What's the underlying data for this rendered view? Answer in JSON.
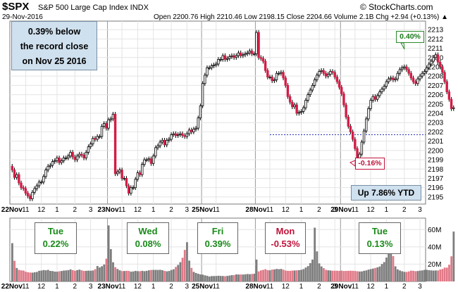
{
  "header": {
    "symbol": "$SPX",
    "name": "S&P 500 Large Cap Index  INDX",
    "brand": "© StockCharts.com",
    "date": "29-Nov-2016",
    "ohlc": "Open 2200.76  High 2210.46  Low 2198.15  Close 2204.66  Volume 2.1B  Chg +2.94 (+0.13%) ▲"
  },
  "annotations": {
    "record_note_line1": "0.39% below",
    "record_note_line2": "the record close",
    "record_note_line3": "on Nov 25 2016",
    "ytd": "Up 7.86% YTD",
    "high_callout": "0.40%",
    "low_callout": "-0.16%"
  },
  "day_boxes": [
    {
      "day": "Tue",
      "change": "0.22%",
      "direction": "up"
    },
    {
      "day": "Wed",
      "change": "0.08%",
      "direction": "up"
    },
    {
      "day": "Fri",
      "change": "0.39%",
      "direction": "up"
    },
    {
      "day": "Mon",
      "change": "-0.53%",
      "direction": "down"
    },
    {
      "day": "Tue",
      "change": "0.13%",
      "direction": "up"
    }
  ],
  "colors": {
    "up_candle": "#ffffff",
    "down_candle": "#d41c46",
    "volume_up": "#7d7d7d",
    "volume_down": "#e07a88",
    "record_line": "#1f2db5",
    "panel_border": "#7a7a7a",
    "grid": "#e4e4e4"
  },
  "chart_data": [
    {
      "type": "candlestick",
      "title": "$SPX S&P 500 Large Cap Index",
      "x_tick_labels": [
        "22Nov",
        "11",
        "12",
        "1",
        "2",
        "3",
        "23Nov",
        "11",
        "12",
        "1",
        "2",
        "3",
        "25Nov",
        "11",
        "28Nov",
        "11",
        "12",
        "1",
        "2",
        "3",
        "29Nov",
        "11",
        "12",
        "1",
        "2",
        "3"
      ],
      "y_tick_labels": [
        "2195",
        "2196",
        "2197",
        "2198",
        "2199",
        "2200",
        "2201",
        "2202",
        "2203",
        "2204",
        "2205",
        "2206",
        "2207",
        "2208",
        "2209",
        "2210",
        "2211",
        "2212",
        "2213"
      ],
      "ylim": [
        2194.5,
        2213.6
      ],
      "grid": true,
      "reference_line": {
        "value": 2201.7,
        "label": "record close Nov 25 2016"
      },
      "series": [
        {
          "close": [
            2197.9,
            2197.1,
            2197.4,
            2196.5,
            2196.0,
            2195.9,
            2195.4,
            2195.1,
            2194.8,
            2195.5,
            2195.9,
            2196.2,
            2196.6,
            2196.6,
            2197.2,
            2197.9,
            2198.3,
            2198.4,
            2198.8,
            2198.9,
            2199.2,
            2198.7,
            2198.9,
            2199.2,
            2199.2,
            2199.4,
            2199.8,
            2199.3,
            2199.0,
            2199.4,
            2199.6,
            2199.5,
            2199.2,
            2199.8,
            2200.4,
            2200.7,
            2201.3,
            2201.2,
            2201.5,
            2201.5,
            2202.6,
            2202.9,
            2202.4,
            2203.3,
            2203.4,
            2203.9,
            2197.5,
            2197.7,
            2197.9,
            2197.0,
            2197.0,
            2196.2,
            2195.4,
            2196.0,
            2196.0,
            2196.9,
            2197.6,
            2197.4,
            2198.5,
            2199.0,
            2199.0,
            2199.1,
            2198.6,
            2199.4,
            2200.3,
            2200.5,
            2200.9,
            2201.1,
            2200.6,
            2201.1,
            2201.2,
            2201.7,
            2201.8,
            2201.6,
            2201.7,
            2201.8,
            2201.6,
            2201.5,
            2201.8,
            2202.2,
            2202.0,
            2202.3,
            2202.4,
            2203.5,
            2204.8,
            2207.2,
            2208.1,
            2208.9,
            2208.9,
            2209.1,
            2209.2,
            2209.3,
            2209.8,
            2209.8,
            2210.2,
            2209.8,
            2209.9,
            2210.1,
            2210.2,
            2210.0,
            2210.2,
            2210.5,
            2210.2,
            2210.3,
            2210.4,
            2210.5,
            2210.7,
            2210.4,
            2210.4,
            2212.7,
            2210.0,
            2209.9,
            2209.6,
            2208.6,
            2207.9,
            2207.9,
            2207.5,
            2207.6,
            2208.3,
            2208.3,
            2208.4,
            2207.8,
            2207.0,
            2205.8,
            2205.2,
            2204.7,
            2204.9,
            2204.0,
            2204.1,
            2204.2,
            2204.6,
            2205.4,
            2206.0,
            2206.5,
            2207.0,
            2207.6,
            2208.1,
            2208.5,
            2208.6,
            2208.3,
            2208.0,
            2208.2,
            2208.5,
            2208.4,
            2207.9,
            2207.4,
            2206.8,
            2206.1,
            2204.9,
            2203.6,
            2202.6,
            2202.0,
            2201.2,
            2200.2,
            2198.8,
            2199.6,
            2200.9,
            2202.1,
            2203.4,
            2204.5,
            2205.4,
            2205.8,
            2205.5,
            2205.9,
            2206.3,
            2206.6,
            2206.9,
            2207.4,
            2207.7,
            2207.8,
            2207.6,
            2207.7,
            2208.3,
            2208.7,
            2208.9,
            2209.0,
            2208.7,
            2208.3,
            2207.8,
            2207.4,
            2207.2,
            2207.7,
            2208.0,
            2208.3,
            2208.5,
            2208.9,
            2209.3,
            2209.6,
            2210.0,
            2210.3,
            2209.5,
            2209.0,
            2208.4,
            2207.4,
            2206.3,
            2205.5,
            2204.5,
            2204.6
          ]
        }
      ]
    },
    {
      "type": "bar",
      "title": "Volume",
      "y_tick_labels": [
        "20M",
        "40M",
        "60M"
      ],
      "ylim": [
        0,
        70
      ],
      "ylabel": "",
      "x_tick_labels": [
        "22Nov",
        "11",
        "12",
        "1",
        "2",
        "3",
        "23Nov",
        "11",
        "12",
        "1",
        "2",
        "3",
        "25Nov",
        "11",
        "28Nov",
        "11",
        "12",
        "1",
        "2",
        "3",
        "29Nov",
        "11",
        "12",
        "1",
        "2",
        "3"
      ],
      "series": [
        {
          "name": "",
          "values": [
            44.3,
            23.9,
            15.6,
            13.4,
            12.8,
            12.6,
            11.3,
            10.6,
            10.3,
            10.2,
            10.6,
            11.0,
            12.3,
            12.6,
            13.2,
            12.9,
            13.4,
            12.2,
            12.0,
            11.4,
            11.3,
            11.8,
            12.1,
            12.6,
            12.8,
            13.1,
            14.0,
            13.1,
            12.4,
            13.1,
            13.7,
            12.9,
            12.2,
            12.3,
            12.5,
            12.4,
            12.7,
            14.2,
            17.9,
            16.2,
            17.6,
            19.6,
            26.3,
            64.8,
            37.4,
            22.2,
            16.5,
            14.4,
            12.9,
            12.0,
            12.1,
            12.3,
            12.2,
            11.3,
            11.6,
            12.2,
            11.9,
            11.9,
            12.3,
            11.9,
            12.3,
            12.9,
            13.3,
            13.4,
            13.4,
            13.3,
            13.5,
            13.0,
            12.2,
            11.7,
            12.1,
            13.3,
            14.1,
            16.8,
            19.1,
            22.3,
            27.4,
            36.5,
            45.4,
            24.1,
            15.7,
            11.1,
            9.8,
            8.9,
            8.1,
            7.9,
            7.1,
            6.5,
            5.7,
            6.2,
            6.3,
            6.3,
            6.6,
            6.4,
            6.3,
            6.1,
            6.4,
            6.8,
            7.3,
            7.4,
            8.2,
            8.0,
            8.1,
            8.0,
            8.3,
            8.6,
            8.4,
            8.7,
            8.9,
            25.3,
            11.6,
            12.8,
            13.4,
            14.2,
            13.1,
            12.9,
            13.8,
            13.9,
            14.5,
            14.2,
            14.5,
            13.6,
            12.6,
            12.3,
            12.2,
            12.6,
            12.7,
            12.9,
            13.1,
            13.5,
            14.3,
            16.1,
            17.8,
            21.2,
            25.3,
            62.2,
            34.8,
            20.9,
            17.4,
            15.4,
            13.4,
            12.9,
            12.7,
            12.4,
            12.4,
            12.4,
            12.2,
            12.5,
            12.1,
            12.2,
            12.3,
            12.4,
            12.3,
            12.1,
            11.8,
            11.5,
            11.6,
            12.3,
            12.8,
            13.7,
            14.3,
            14.9,
            15.6,
            16.3,
            17.3,
            20.2,
            22.4,
            27.6,
            59.2,
            45.1,
            29.3,
            17.5,
            14.0,
            12.7,
            11.8,
            11.1,
            11.0,
            11.6,
            12.5,
            12.3,
            11.9,
            12.1,
            12.5,
            12.8,
            13.4,
            13.5,
            13.0,
            12.8,
            12.6,
            12.7,
            12.7,
            13.8,
            14.4,
            16.0,
            16.0,
            19.4,
            29.1,
            57.7
          ]
        }
      ]
    }
  ]
}
